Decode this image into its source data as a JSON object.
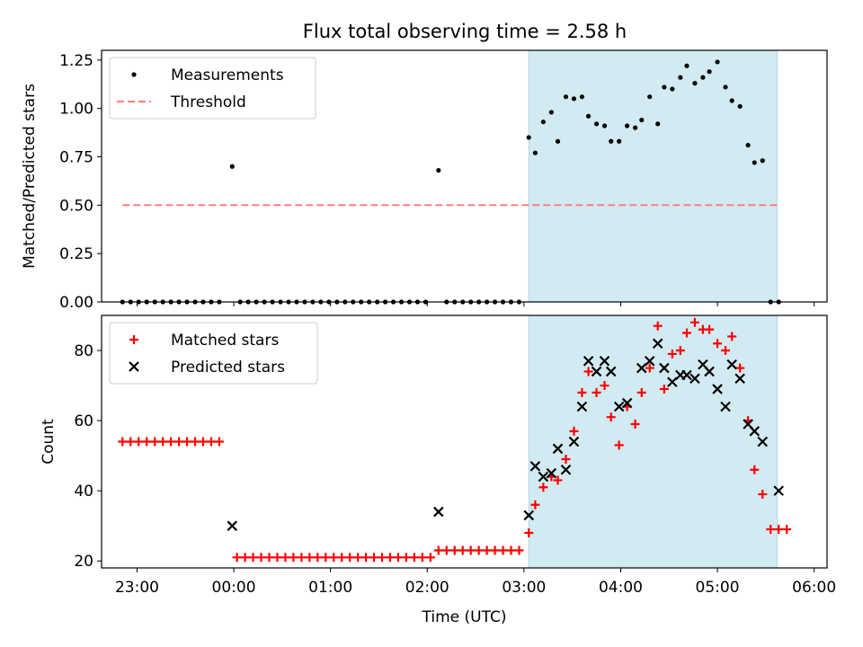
{
  "title": "Flux total observing time = 2.58 h",
  "colors": {
    "measurement": "#000000",
    "threshold": "#ff7f7f",
    "matched": "#ff0000",
    "predicted": "#000000",
    "shade": "#add8e6"
  },
  "chart_data": [
    {
      "type": "scatter",
      "ylabel": "Matched/Predicted stars",
      "ylim": [
        0,
        1.3
      ],
      "yticks": [
        0,
        0.25,
        0.5,
        0.75,
        1.0,
        1.25
      ],
      "ytick_labels": [
        "0.00",
        "0.25",
        "0.50",
        "0.75",
        "1.00",
        "1.25"
      ],
      "legend_position": "top-left",
      "shaded_span": [
        "03:03",
        "05:37"
      ],
      "series": [
        {
          "name": "Measurements",
          "marker": "dot",
          "points": [
            [
              "22:51",
              0
            ],
            [
              "22:56",
              0
            ],
            [
              "23:01",
              0
            ],
            [
              "23:06",
              0
            ],
            [
              "23:11",
              0
            ],
            [
              "23:16",
              0
            ],
            [
              "23:21",
              0
            ],
            [
              "23:26",
              0
            ],
            [
              "23:31",
              0
            ],
            [
              "23:36",
              0
            ],
            [
              "23:41",
              0
            ],
            [
              "23:46",
              0
            ],
            [
              "23:51",
              0
            ],
            [
              "23:59",
              0.7
            ],
            [
              "00:04",
              0
            ],
            [
              "00:09",
              0
            ],
            [
              "00:14",
              0
            ],
            [
              "00:19",
              0
            ],
            [
              "00:24",
              0
            ],
            [
              "00:29",
              0
            ],
            [
              "00:34",
              0
            ],
            [
              "00:39",
              0
            ],
            [
              "00:44",
              0
            ],
            [
              "00:49",
              0
            ],
            [
              "00:54",
              0
            ],
            [
              "00:59",
              0
            ],
            [
              "01:04",
              0
            ],
            [
              "01:09",
              0
            ],
            [
              "01:14",
              0
            ],
            [
              "01:19",
              0
            ],
            [
              "01:24",
              0
            ],
            [
              "01:29",
              0
            ],
            [
              "01:34",
              0
            ],
            [
              "01:39",
              0
            ],
            [
              "01:44",
              0
            ],
            [
              "01:49",
              0
            ],
            [
              "01:54",
              0
            ],
            [
              "01:59",
              0
            ],
            [
              "02:07",
              0.68
            ],
            [
              "02:12",
              0
            ],
            [
              "02:17",
              0
            ],
            [
              "02:22",
              0
            ],
            [
              "02:27",
              0
            ],
            [
              "02:32",
              0
            ],
            [
              "02:37",
              0
            ],
            [
              "02:42",
              0
            ],
            [
              "02:47",
              0
            ],
            [
              "02:52",
              0
            ],
            [
              "02:57",
              0
            ],
            [
              "03:03",
              0.85
            ],
            [
              "03:07",
              0.77
            ],
            [
              "03:12",
              0.93
            ],
            [
              "03:17",
              0.98
            ],
            [
              "03:21",
              0.83
            ],
            [
              "03:26",
              1.06
            ],
            [
              "03:31",
              1.05
            ],
            [
              "03:36",
              1.06
            ],
            [
              "03:40",
              0.96
            ],
            [
              "03:45",
              0.92
            ],
            [
              "03:50",
              0.91
            ],
            [
              "03:54",
              0.83
            ],
            [
              "03:59",
              0.83
            ],
            [
              "04:04",
              0.91
            ],
            [
              "04:09",
              0.9
            ],
            [
              "04:13",
              0.94
            ],
            [
              "04:18",
              1.06
            ],
            [
              "04:23",
              0.92
            ],
            [
              "04:27",
              1.11
            ],
            [
              "04:32",
              1.1
            ],
            [
              "04:37",
              1.16
            ],
            [
              "04:41",
              1.22
            ],
            [
              "04:46",
              1.13
            ],
            [
              "04:51",
              1.16
            ],
            [
              "04:55",
              1.19
            ],
            [
              "05:00",
              1.24
            ],
            [
              "05:05",
              1.11
            ],
            [
              "05:09",
              1.04
            ],
            [
              "05:14",
              1.01
            ],
            [
              "05:19",
              0.81
            ],
            [
              "05:23",
              0.72
            ],
            [
              "05:28",
              0.73
            ],
            [
              "05:33",
              0
            ],
            [
              "05:38",
              0
            ]
          ]
        },
        {
          "name": "Threshold",
          "style": "dashed",
          "points": [
            [
              "22:51",
              0.5
            ],
            [
              "05:38",
              0.5
            ]
          ]
        }
      ]
    },
    {
      "type": "scatter",
      "xlabel": "Time (UTC)",
      "ylabel": "Count",
      "xlim": [
        "22:38",
        "06:08"
      ],
      "ylim": [
        18,
        90
      ],
      "yticks": [
        20,
        40,
        60,
        80
      ],
      "xticks": [
        "23:00",
        "00:00",
        "01:00",
        "02:00",
        "03:00",
        "04:00",
        "05:00",
        "06:00"
      ],
      "legend_position": "top-left",
      "shaded_span": [
        "03:03",
        "05:37"
      ],
      "series": [
        {
          "name": "Matched stars",
          "marker": "plus",
          "points": [
            [
              "22:51",
              54
            ],
            [
              "22:56",
              54
            ],
            [
              "23:01",
              54
            ],
            [
              "23:06",
              54
            ],
            [
              "23:11",
              54
            ],
            [
              "23:16",
              54
            ],
            [
              "23:21",
              54
            ],
            [
              "23:26",
              54
            ],
            [
              "23:31",
              54
            ],
            [
              "23:36",
              54
            ],
            [
              "23:41",
              54
            ],
            [
              "23:46",
              54
            ],
            [
              "23:51",
              54
            ],
            [
              "00:02",
              21
            ],
            [
              "00:07",
              21
            ],
            [
              "00:12",
              21
            ],
            [
              "00:17",
              21
            ],
            [
              "00:22",
              21
            ],
            [
              "00:27",
              21
            ],
            [
              "00:32",
              21
            ],
            [
              "00:37",
              21
            ],
            [
              "00:42",
              21
            ],
            [
              "00:47",
              21
            ],
            [
              "00:52",
              21
            ],
            [
              "00:57",
              21
            ],
            [
              "01:02",
              21
            ],
            [
              "01:07",
              21
            ],
            [
              "01:12",
              21
            ],
            [
              "01:17",
              21
            ],
            [
              "01:22",
              21
            ],
            [
              "01:27",
              21
            ],
            [
              "01:32",
              21
            ],
            [
              "01:37",
              21
            ],
            [
              "01:42",
              21
            ],
            [
              "01:47",
              21
            ],
            [
              "01:52",
              21
            ],
            [
              "01:57",
              21
            ],
            [
              "02:02",
              21
            ],
            [
              "02:07",
              23
            ],
            [
              "02:12",
              23
            ],
            [
              "02:17",
              23
            ],
            [
              "02:22",
              23
            ],
            [
              "02:27",
              23
            ],
            [
              "02:32",
              23
            ],
            [
              "02:37",
              23
            ],
            [
              "02:42",
              23
            ],
            [
              "02:47",
              23
            ],
            [
              "02:52",
              23
            ],
            [
              "02:57",
              23
            ],
            [
              "03:03",
              28
            ],
            [
              "03:07",
              36
            ],
            [
              "03:12",
              41
            ],
            [
              "03:17",
              44
            ],
            [
              "03:21",
              43
            ],
            [
              "03:26",
              49
            ],
            [
              "03:31",
              57
            ],
            [
              "03:36",
              68
            ],
            [
              "03:40",
              74
            ],
            [
              "03:45",
              68
            ],
            [
              "03:50",
              70
            ],
            [
              "03:54",
              61
            ],
            [
              "03:59",
              53
            ],
            [
              "04:04",
              64
            ],
            [
              "04:09",
              59
            ],
            [
              "04:13",
              68
            ],
            [
              "04:18",
              75
            ],
            [
              "04:23",
              87
            ],
            [
              "04:27",
              69
            ],
            [
              "04:32",
              79
            ],
            [
              "04:37",
              80
            ],
            [
              "04:41",
              85
            ],
            [
              "04:46",
              88
            ],
            [
              "04:51",
              86
            ],
            [
              "04:55",
              86
            ],
            [
              "05:00",
              82
            ],
            [
              "05:05",
              80
            ],
            [
              "05:09",
              84
            ],
            [
              "05:14",
              75
            ],
            [
              "05:19",
              60
            ],
            [
              "05:23",
              46
            ],
            [
              "05:28",
              39
            ],
            [
              "05:33",
              29
            ],
            [
              "05:38",
              29
            ],
            [
              "05:43",
              29
            ]
          ]
        },
        {
          "name": "Predicted stars",
          "marker": "x",
          "points": [
            [
              "23:59",
              30
            ],
            [
              "02:07",
              34
            ],
            [
              "03:03",
              33
            ],
            [
              "03:07",
              47
            ],
            [
              "03:12",
              44
            ],
            [
              "03:17",
              45
            ],
            [
              "03:26",
              46
            ],
            [
              "03:21",
              52
            ],
            [
              "03:31",
              54
            ],
            [
              "03:36",
              64
            ],
            [
              "03:40",
              77
            ],
            [
              "03:45",
              74
            ],
            [
              "03:50",
              77
            ],
            [
              "03:54",
              74
            ],
            [
              "03:59",
              64
            ],
            [
              "04:04",
              65
            ],
            [
              "04:13",
              75
            ],
            [
              "04:18",
              77
            ],
            [
              "04:23",
              82
            ],
            [
              "04:27",
              75
            ],
            [
              "04:32",
              71
            ],
            [
              "04:37",
              73
            ],
            [
              "04:41",
              73
            ],
            [
              "04:46",
              72
            ],
            [
              "04:51",
              76
            ],
            [
              "04:55",
              74
            ],
            [
              "05:00",
              69
            ],
            [
              "05:05",
              64
            ],
            [
              "05:09",
              76
            ],
            [
              "05:14",
              72
            ],
            [
              "05:19",
              59
            ],
            [
              "05:23",
              57
            ],
            [
              "05:28",
              54
            ],
            [
              "05:38",
              40
            ]
          ]
        }
      ]
    }
  ]
}
